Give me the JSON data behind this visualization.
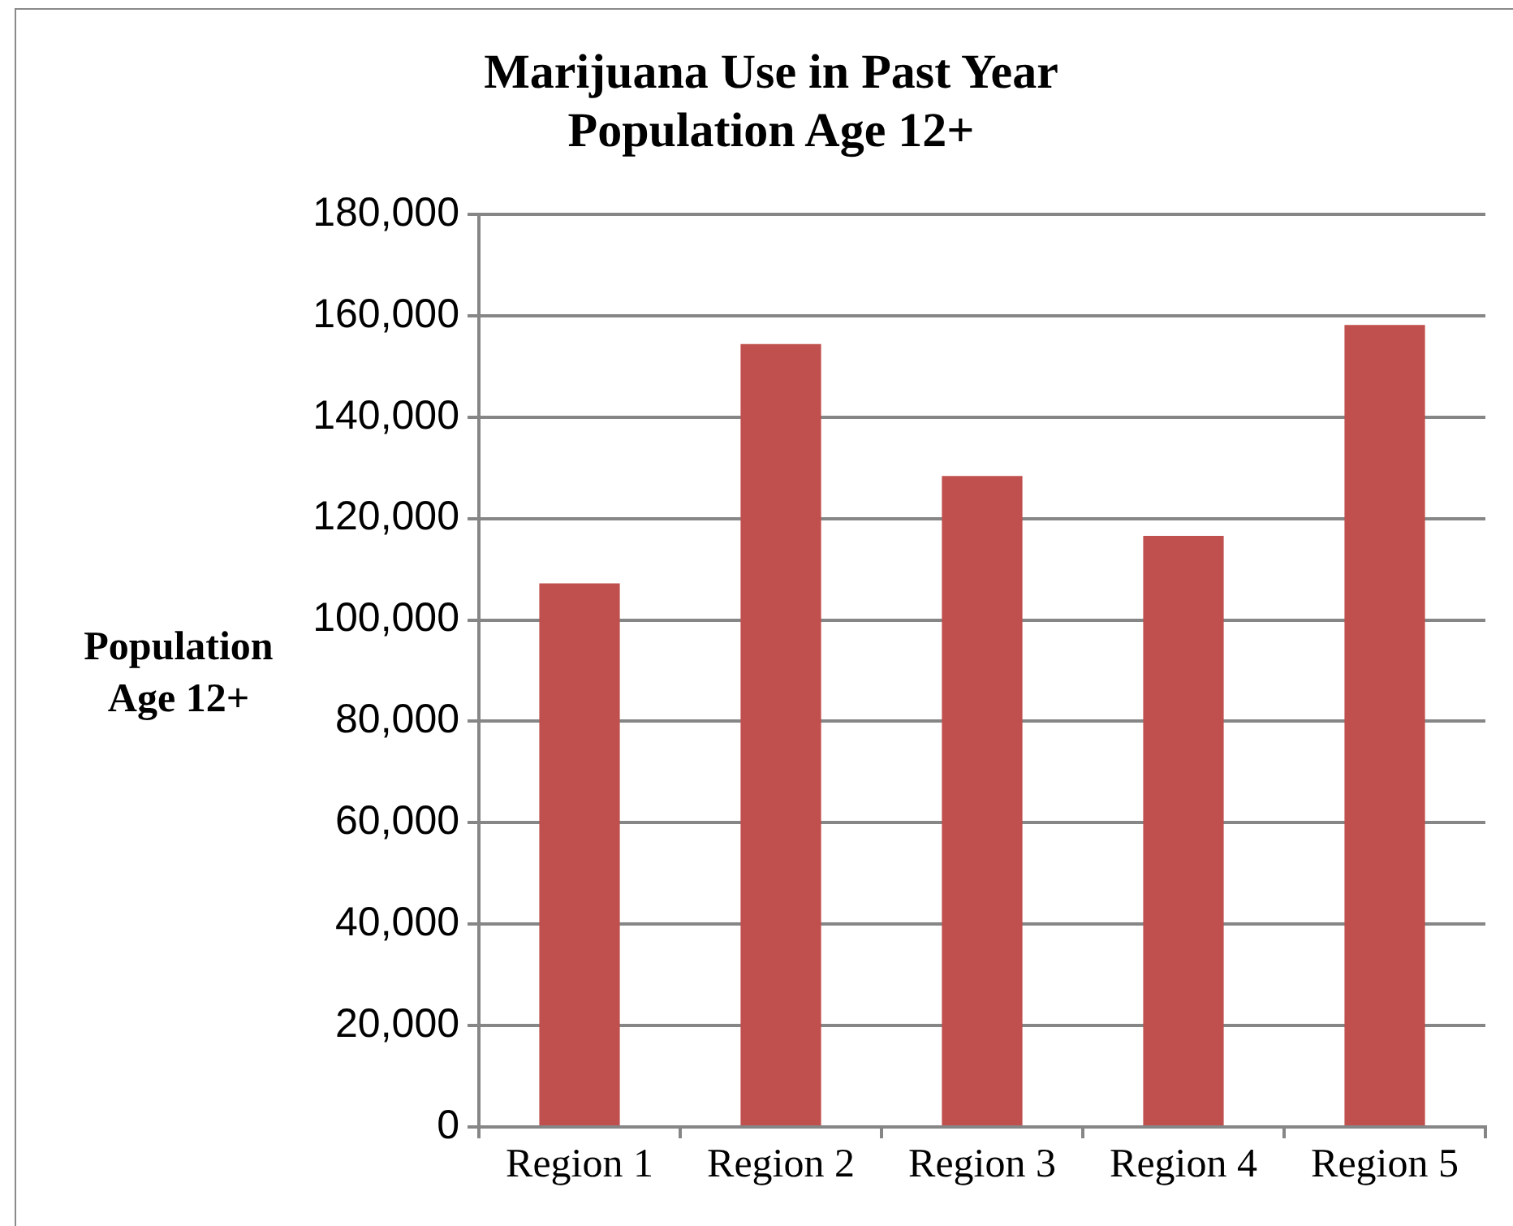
{
  "chart_data": {
    "type": "bar",
    "title": "Marijuana Use in Past Year",
    "subtitle": "Population Age 12+",
    "ylabel": "Population Age 12+",
    "categories": [
      "Region 1",
      "Region 2",
      "Region 3",
      "Region 4",
      "Region 5"
    ],
    "values": [
      107200,
      154400,
      128400,
      116600,
      158200
    ],
    "color": "#c0504d",
    "ylim": [
      0,
      180000
    ],
    "yticks": [
      {
        "value": 0,
        "label": "0"
      },
      {
        "value": 20000,
        "label": "20,000"
      },
      {
        "value": 40000,
        "label": "40,000"
      },
      {
        "value": 60000,
        "label": "60,000"
      },
      {
        "value": 80000,
        "label": "80,000"
      },
      {
        "value": 100000,
        "label": "100,000"
      },
      {
        "value": 120000,
        "label": "120,000"
      },
      {
        "value": 140000,
        "label": "140,000"
      },
      {
        "value": 160000,
        "label": "160,000"
      },
      {
        "value": 180000,
        "label": "180,000"
      }
    ],
    "grid": "y"
  }
}
